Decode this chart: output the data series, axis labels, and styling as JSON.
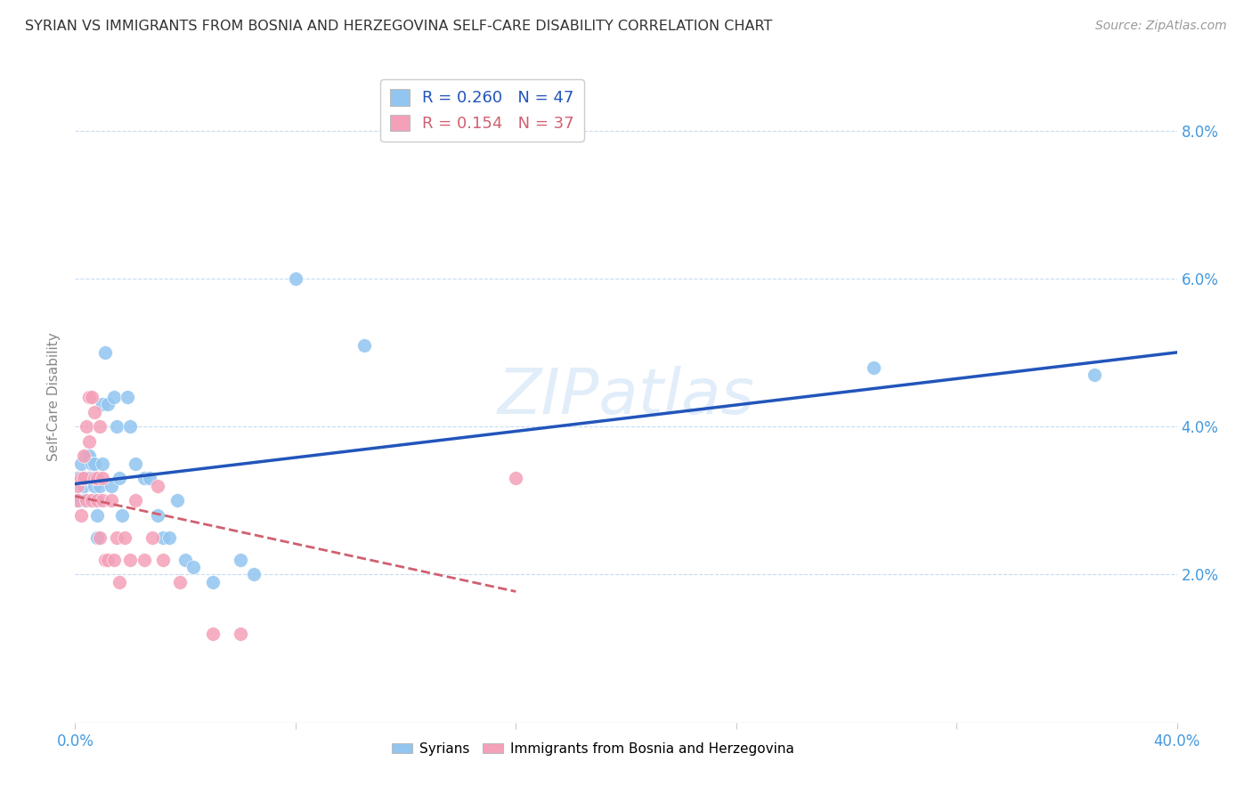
{
  "title": "SYRIAN VS IMMIGRANTS FROM BOSNIA AND HERZEGOVINA SELF-CARE DISABILITY CORRELATION CHART",
  "source": "Source: ZipAtlas.com",
  "ylabel": "Self-Care Disability",
  "xlim": [
    0.0,
    0.4
  ],
  "ylim": [
    0.0,
    0.088
  ],
  "xticks": [
    0.0,
    0.08,
    0.16,
    0.24,
    0.32,
    0.4
  ],
  "xtick_labels": [
    "0.0%",
    "",
    "",
    "",
    "",
    "40.0%"
  ],
  "yticks": [
    0.0,
    0.02,
    0.04,
    0.06,
    0.08
  ],
  "ytick_labels": [
    "",
    "2.0%",
    "4.0%",
    "6.0%",
    "8.0%"
  ],
  "blue_R": 0.26,
  "blue_N": 47,
  "pink_R": 0.154,
  "pink_N": 37,
  "blue_color": "#92C5F0",
  "pink_color": "#F4A0B8",
  "blue_line_color": "#2255BB",
  "pink_line_color": "#D06070",
  "watermark": "ZIPatlas",
  "syrians_x": [
    0.001,
    0.001,
    0.002,
    0.002,
    0.003,
    0.003,
    0.004,
    0.004,
    0.004,
    0.005,
    0.005,
    0.005,
    0.006,
    0.006,
    0.007,
    0.007,
    0.007,
    0.008,
    0.008,
    0.009,
    0.01,
    0.01,
    0.011,
    0.012,
    0.013,
    0.014,
    0.015,
    0.016,
    0.017,
    0.019,
    0.02,
    0.022,
    0.025,
    0.027,
    0.03,
    0.032,
    0.034,
    0.037,
    0.04,
    0.043,
    0.05,
    0.06,
    0.065,
    0.08,
    0.105,
    0.29,
    0.37
  ],
  "syrians_y": [
    0.033,
    0.03,
    0.03,
    0.035,
    0.03,
    0.032,
    0.03,
    0.033,
    0.036,
    0.03,
    0.033,
    0.036,
    0.035,
    0.03,
    0.03,
    0.032,
    0.035,
    0.028,
    0.025,
    0.032,
    0.035,
    0.043,
    0.05,
    0.043,
    0.032,
    0.044,
    0.04,
    0.033,
    0.028,
    0.044,
    0.04,
    0.035,
    0.033,
    0.033,
    0.028,
    0.025,
    0.025,
    0.03,
    0.022,
    0.021,
    0.019,
    0.022,
    0.02,
    0.06,
    0.051,
    0.048,
    0.047
  ],
  "bosnia_x": [
    0.001,
    0.001,
    0.002,
    0.002,
    0.003,
    0.003,
    0.004,
    0.004,
    0.005,
    0.005,
    0.006,
    0.006,
    0.007,
    0.007,
    0.008,
    0.008,
    0.009,
    0.009,
    0.01,
    0.01,
    0.011,
    0.012,
    0.013,
    0.014,
    0.015,
    0.016,
    0.018,
    0.02,
    0.022,
    0.025,
    0.028,
    0.03,
    0.032,
    0.038,
    0.05,
    0.06,
    0.16
  ],
  "bosnia_y": [
    0.03,
    0.032,
    0.033,
    0.028,
    0.033,
    0.036,
    0.03,
    0.04,
    0.044,
    0.038,
    0.03,
    0.044,
    0.042,
    0.033,
    0.03,
    0.033,
    0.025,
    0.04,
    0.03,
    0.033,
    0.022,
    0.022,
    0.03,
    0.022,
    0.025,
    0.019,
    0.025,
    0.022,
    0.03,
    0.022,
    0.025,
    0.032,
    0.022,
    0.019,
    0.012,
    0.012,
    0.033
  ]
}
